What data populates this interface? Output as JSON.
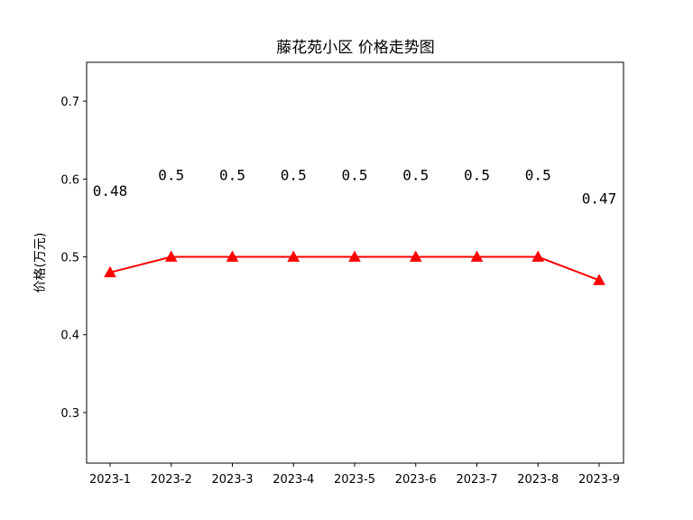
{
  "chart_data": {
    "type": "line",
    "title": "藤花苑小区 价格走势图",
    "xlabel": "",
    "ylabel": "价格(万元)",
    "categories": [
      "2023-1",
      "2023-2",
      "2023-3",
      "2023-4",
      "2023-5",
      "2023-6",
      "2023-7",
      "2023-8",
      "2023-9"
    ],
    "series": [
      {
        "values": [
          0.48,
          0.5,
          0.5,
          0.5,
          0.5,
          0.5,
          0.5,
          0.5,
          0.47
        ],
        "labels": [
          "0.48",
          "0.5",
          "0.5",
          "0.5",
          "0.5",
          "0.5",
          "0.5",
          "0.5",
          "0.47"
        ],
        "color": "#ff0000",
        "marker": "triangle"
      }
    ],
    "ylim": [
      0.235,
      0.75
    ],
    "yticks": [
      "0.3",
      "0.4",
      "0.5",
      "0.6",
      "0.7"
    ],
    "grid": false,
    "legend": false
  }
}
